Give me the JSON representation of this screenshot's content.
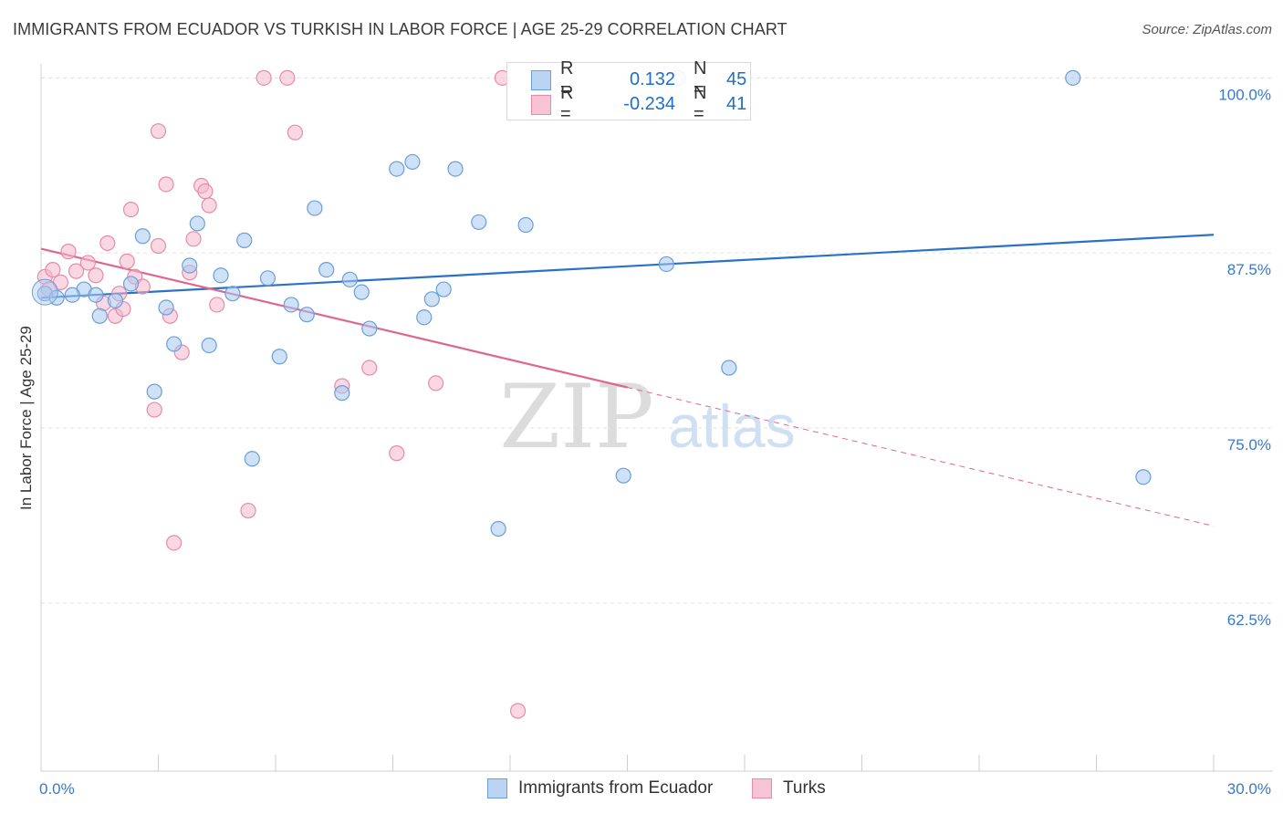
{
  "header": {
    "title": "IMMIGRANTS FROM ECUADOR VS TURKISH IN LABOR FORCE | AGE 25-29 CORRELATION CHART",
    "source": "Source: ZipAtlas.com"
  },
  "watermark": {
    "zip": "ZIP",
    "atlas": "atlas"
  },
  "legend": {
    "series1": {
      "r_label": "R =",
      "r_value": "0.132",
      "n_label": "N =",
      "n_value": "45"
    },
    "series2": {
      "r_label": "R =",
      "r_value": "-0.234",
      "n_label": "N =",
      "n_value": "41"
    }
  },
  "colors": {
    "blue_fill": "#a8c8f0",
    "blue_stroke": "#6a9fd8",
    "blue_line": "#2a72c8",
    "pink_fill": "#f4b8cc",
    "pink_stroke": "#e88aa8",
    "pink_line": "#e0668e",
    "tick_label": "#3a78c8",
    "grid": "#e2e2e2"
  },
  "chart_data": {
    "type": "scatter",
    "title": "IMMIGRANTS FROM ECUADOR VS TURKISH IN LABOR FORCE | AGE 25-29 CORRELATION CHART",
    "xlabel": "",
    "ylabel": "In Labor Force | Age 25-29",
    "xlim": [
      0,
      30
    ],
    "ylim": [
      50.5,
      101
    ],
    "x_tick_labels": [
      "0.0%",
      "30.0%"
    ],
    "y_ticks": [
      {
        "value": 100,
        "label": "100.0%"
      },
      {
        "value": 87.5,
        "label": "87.5%"
      },
      {
        "value": 75,
        "label": "75.0%"
      },
      {
        "value": 62.5,
        "label": "62.5%"
      }
    ],
    "grid": true,
    "series": [
      {
        "name": "Immigrants from Ecuador",
        "color": "#a8c8f0",
        "trend": {
          "x": [
            0,
            30
          ],
          "y": [
            84.3,
            88.8
          ]
        },
        "points": [
          [
            0.1,
            84.6
          ],
          [
            0.4,
            84.3
          ],
          [
            1.1,
            84.9
          ],
          [
            1.4,
            84.5
          ],
          [
            1.9,
            84.1
          ],
          [
            1.5,
            83.0
          ],
          [
            2.3,
            85.3
          ],
          [
            2.6,
            88.7
          ],
          [
            3.2,
            83.6
          ],
          [
            3.8,
            86.6
          ],
          [
            4.0,
            89.6
          ],
          [
            3.4,
            81.0
          ],
          [
            2.9,
            77.6
          ],
          [
            4.3,
            80.9
          ],
          [
            4.6,
            85.9
          ],
          [
            4.9,
            84.6
          ],
          [
            5.2,
            88.4
          ],
          [
            5.8,
            85.7
          ],
          [
            6.1,
            80.1
          ],
          [
            6.4,
            83.8
          ],
          [
            6.8,
            83.1
          ],
          [
            7.0,
            90.7
          ],
          [
            7.3,
            86.3
          ],
          [
            7.7,
            77.5
          ],
          [
            7.9,
            85.6
          ],
          [
            8.2,
            84.7
          ],
          [
            8.4,
            82.1
          ],
          [
            5.4,
            72.8
          ],
          [
            9.1,
            93.5
          ],
          [
            9.5,
            94.0
          ],
          [
            10.0,
            84.2
          ],
          [
            10.3,
            84.9
          ],
          [
            10.6,
            93.5
          ],
          [
            11.2,
            89.7
          ],
          [
            11.7,
            67.8
          ],
          [
            12.4,
            89.5
          ],
          [
            12.8,
            100.0
          ],
          [
            14.9,
            71.6
          ],
          [
            16.0,
            86.7
          ],
          [
            16.3,
            100.0
          ],
          [
            17.6,
            79.3
          ],
          [
            26.4,
            100.0
          ],
          [
            28.2,
            71.5
          ],
          [
            0.8,
            84.5
          ],
          [
            9.8,
            82.9
          ]
        ]
      },
      {
        "name": "Turks",
        "color": "#f4b8cc",
        "trend": {
          "x": [
            0,
            30
          ],
          "y": [
            87.8,
            68.0
          ],
          "solid_until_x": 15.0
        },
        "points": [
          [
            0.1,
            85.8
          ],
          [
            0.3,
            86.3
          ],
          [
            0.5,
            85.4
          ],
          [
            0.7,
            87.6
          ],
          [
            0.9,
            86.2
          ],
          [
            1.2,
            86.8
          ],
          [
            1.4,
            85.9
          ],
          [
            1.6,
            83.9
          ],
          [
            1.7,
            88.2
          ],
          [
            1.9,
            83.0
          ],
          [
            2.1,
            83.5
          ],
          [
            2.2,
            86.9
          ],
          [
            2.3,
            90.6
          ],
          [
            2.4,
            85.8
          ],
          [
            2.6,
            85.1
          ],
          [
            2.9,
            76.3
          ],
          [
            3.0,
            88.0
          ],
          [
            3.0,
            96.2
          ],
          [
            3.2,
            92.4
          ],
          [
            3.3,
            83.0
          ],
          [
            3.6,
            80.4
          ],
          [
            3.8,
            86.1
          ],
          [
            3.9,
            88.5
          ],
          [
            4.1,
            92.3
          ],
          [
            4.2,
            91.9
          ],
          [
            4.3,
            90.9
          ],
          [
            4.5,
            83.8
          ],
          [
            3.4,
            66.8
          ],
          [
            5.3,
            69.1
          ],
          [
            5.7,
            100.0
          ],
          [
            6.3,
            100.0
          ],
          [
            6.5,
            96.1
          ],
          [
            7.7,
            78.0
          ],
          [
            8.4,
            79.3
          ],
          [
            9.1,
            73.2
          ],
          [
            10.1,
            78.2
          ],
          [
            11.8,
            100.0
          ],
          [
            12.2,
            54.8
          ],
          [
            12.9,
            98.6
          ],
          [
            0.2,
            84.9
          ],
          [
            2.0,
            84.6
          ]
        ]
      }
    ]
  }
}
